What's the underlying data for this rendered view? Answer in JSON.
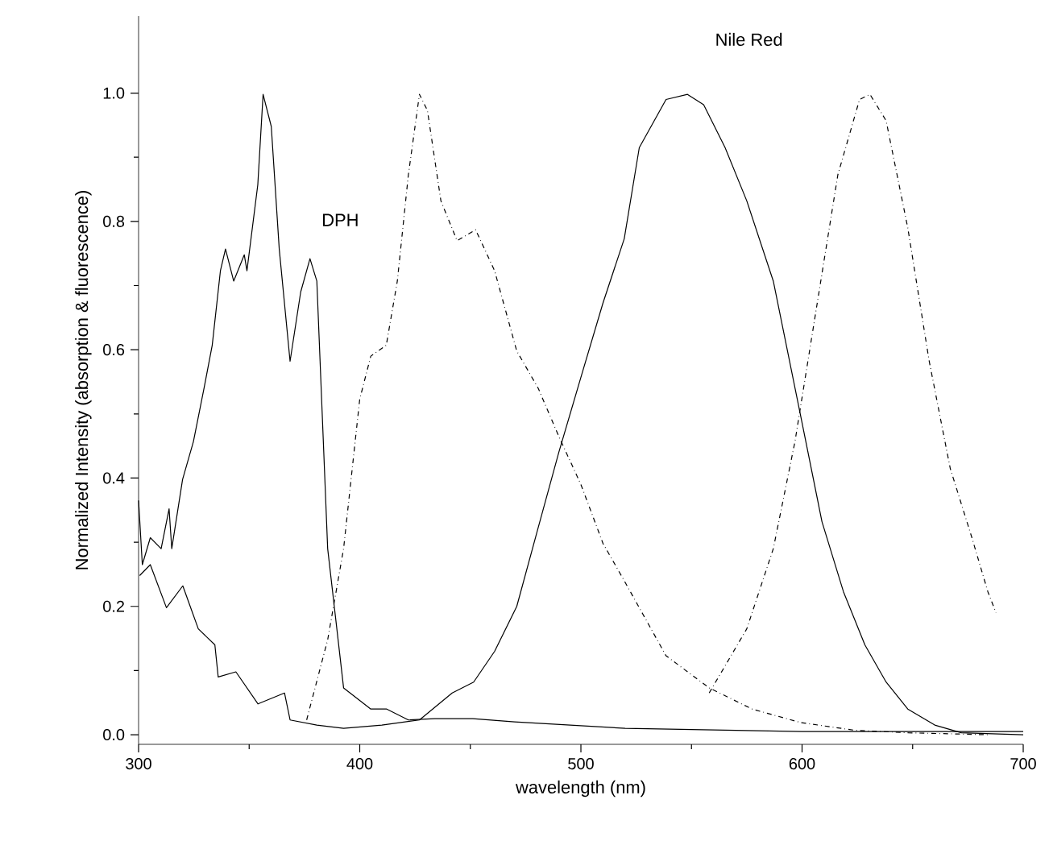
{
  "chart_data": {
    "type": "line",
    "xlabel": "wavelength (nm)",
    "ylabel": "Normalized Intensity (absorption & fluorescence)",
    "annotations": [
      "DPH",
      "Nile Red"
    ],
    "xlim": [
      300,
      700
    ],
    "ylim": [
      -0.015,
      1.12
    ],
    "xticks": [
      300,
      400,
      500,
      600,
      700
    ],
    "yticks": [
      {
        "value": 0,
        "label": "0.0"
      },
      {
        "value": 0.2,
        "label": "0.2"
      },
      {
        "value": 0.4,
        "label": "0.4"
      },
      {
        "value": 0.6,
        "label": "0.6"
      },
      {
        "value": 0.8,
        "label": "0.8"
      },
      {
        "value": 1,
        "label": "1.0"
      }
    ],
    "grid": false,
    "marker": "none",
    "series": [
      {
        "color": "#000000",
        "line_style": "solid",
        "x": [
          300,
          301.7,
          305.3,
          310.2,
          313.8,
          315,
          319.9,
          324.8,
          329.6,
          333.3,
          337,
          339.3,
          343,
          347.8,
          349,
          353.9,
          356.3,
          360,
          363.6,
          368.5,
          373.3,
          377.5,
          380.6,
          385.5,
          392.7,
          405,
          412.2,
          422,
          434,
          443.8,
          451.1,
          470,
          520,
          600,
          700
        ],
        "values": [
          0.365,
          0.265,
          0.307,
          0.29,
          0.352,
          0.29,
          0.398,
          0.457,
          0.54,
          0.607,
          0.723,
          0.757,
          0.707,
          0.748,
          0.723,
          0.857,
          0.998,
          0.948,
          0.757,
          0.582,
          0.69,
          0.742,
          0.707,
          0.29,
          0.073,
          0.04,
          0.04,
          0.023,
          0.025,
          0.025,
          0.025,
          0.02,
          0.01,
          0.005,
          0.005
        ]
      },
      {
        "color": "#000000",
        "line_style": "solid",
        "x": [
          300.5,
          305.3,
          312.6,
          320,
          327,
          334.5,
          336,
          344,
          354,
          366,
          368.5,
          380.6,
          392.7,
          410,
          427,
          441.8,
          451.5,
          461,
          471,
          480.7,
          490,
          500,
          510,
          519.6,
          526.4,
          538.5,
          548.2,
          555.5,
          565.2,
          575,
          587,
          599.3,
          609,
          618.7,
          628.4,
          638,
          647.8,
          660,
          672,
          700
        ],
        "values": [
          0.248,
          0.265,
          0.198,
          0.232,
          0.165,
          0.14,
          0.09,
          0.098,
          0.048,
          0.065,
          0.023,
          0.015,
          0.01,
          0.015,
          0.023,
          0.065,
          0.082,
          0.13,
          0.2,
          0.323,
          0.44,
          0.557,
          0.673,
          0.773,
          0.915,
          0.99,
          0.998,
          0.982,
          0.915,
          0.832,
          0.707,
          0.498,
          0.332,
          0.223,
          0.14,
          0.082,
          0.04,
          0.015,
          0.003,
          0
        ]
      },
      {
        "color": "#000000",
        "line_style": "dashdot",
        "x": [
          376,
          385.5,
          392.7,
          400,
          405,
          412,
          417,
          422,
          427,
          430.6,
          436.7,
          444,
          452.4,
          461,
          471,
          480.7,
          490,
          500,
          510,
          519.6,
          538.5,
          558,
          577.4,
          599.3,
          623.6,
          648,
          684
        ],
        "values": [
          0.023,
          0.148,
          0.29,
          0.523,
          0.59,
          0.607,
          0.707,
          0.873,
          0.998,
          0.973,
          0.832,
          0.77,
          0.787,
          0.723,
          0.598,
          0.54,
          0.465,
          0.39,
          0.298,
          0.24,
          0.123,
          0.073,
          0.04,
          0.019,
          0.007,
          0.003,
          0
        ]
      },
      {
        "color": "#000000",
        "line_style": "dashdot",
        "x": [
          558,
          575,
          587,
          596.8,
          606.5,
          616.2,
          626,
          630.7,
          638,
          647.8,
          657.5,
          667,
          676.8,
          684,
          687.7
        ],
        "values": [
          0.065,
          0.165,
          0.29,
          0.457,
          0.665,
          0.873,
          0.99,
          0.998,
          0.957,
          0.79,
          0.582,
          0.415,
          0.307,
          0.223,
          0.19
        ]
      }
    ]
  }
}
